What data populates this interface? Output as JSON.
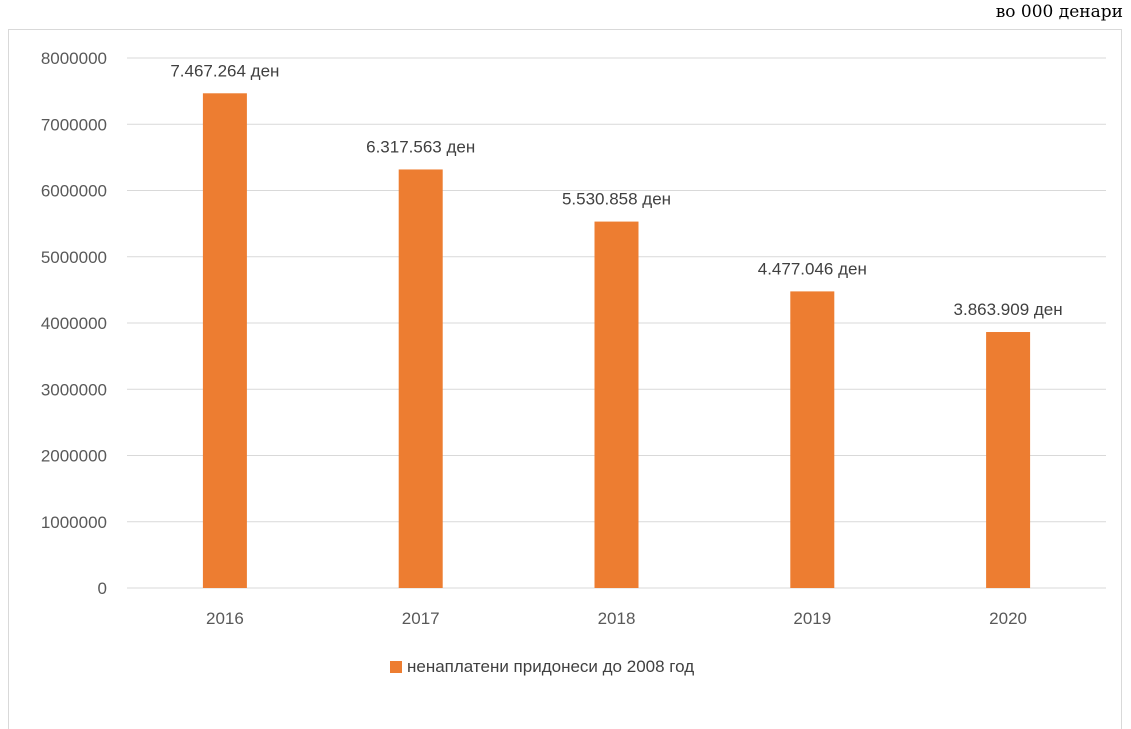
{
  "unit_note": "во 000 денари",
  "colors": {
    "bar": "#ED7D31",
    "grid": "#d9d9d9",
    "text": "#595959"
  },
  "chart_data": {
    "type": "bar",
    "categories": [
      "2016",
      "2017",
      "2018",
      "2019",
      "2020"
    ],
    "series": [
      {
        "name": "ненаплатени придонеси до 2008 год",
        "values": [
          7467264,
          6317563,
          5530858,
          4477046,
          3863909
        ],
        "data_labels": [
          "7.467.264 ден",
          "6.317.563 ден",
          "5.530.858 ден",
          "4.477.046 ден",
          "3.863.909 ден"
        ]
      }
    ],
    "ylim": [
      0,
      8000000
    ],
    "yticks": [
      "0",
      "1000000",
      "2000000",
      "3000000",
      "4000000",
      "5000000",
      "6000000",
      "7000000",
      "8000000"
    ],
    "grid": true,
    "legend_position": "bottom"
  }
}
